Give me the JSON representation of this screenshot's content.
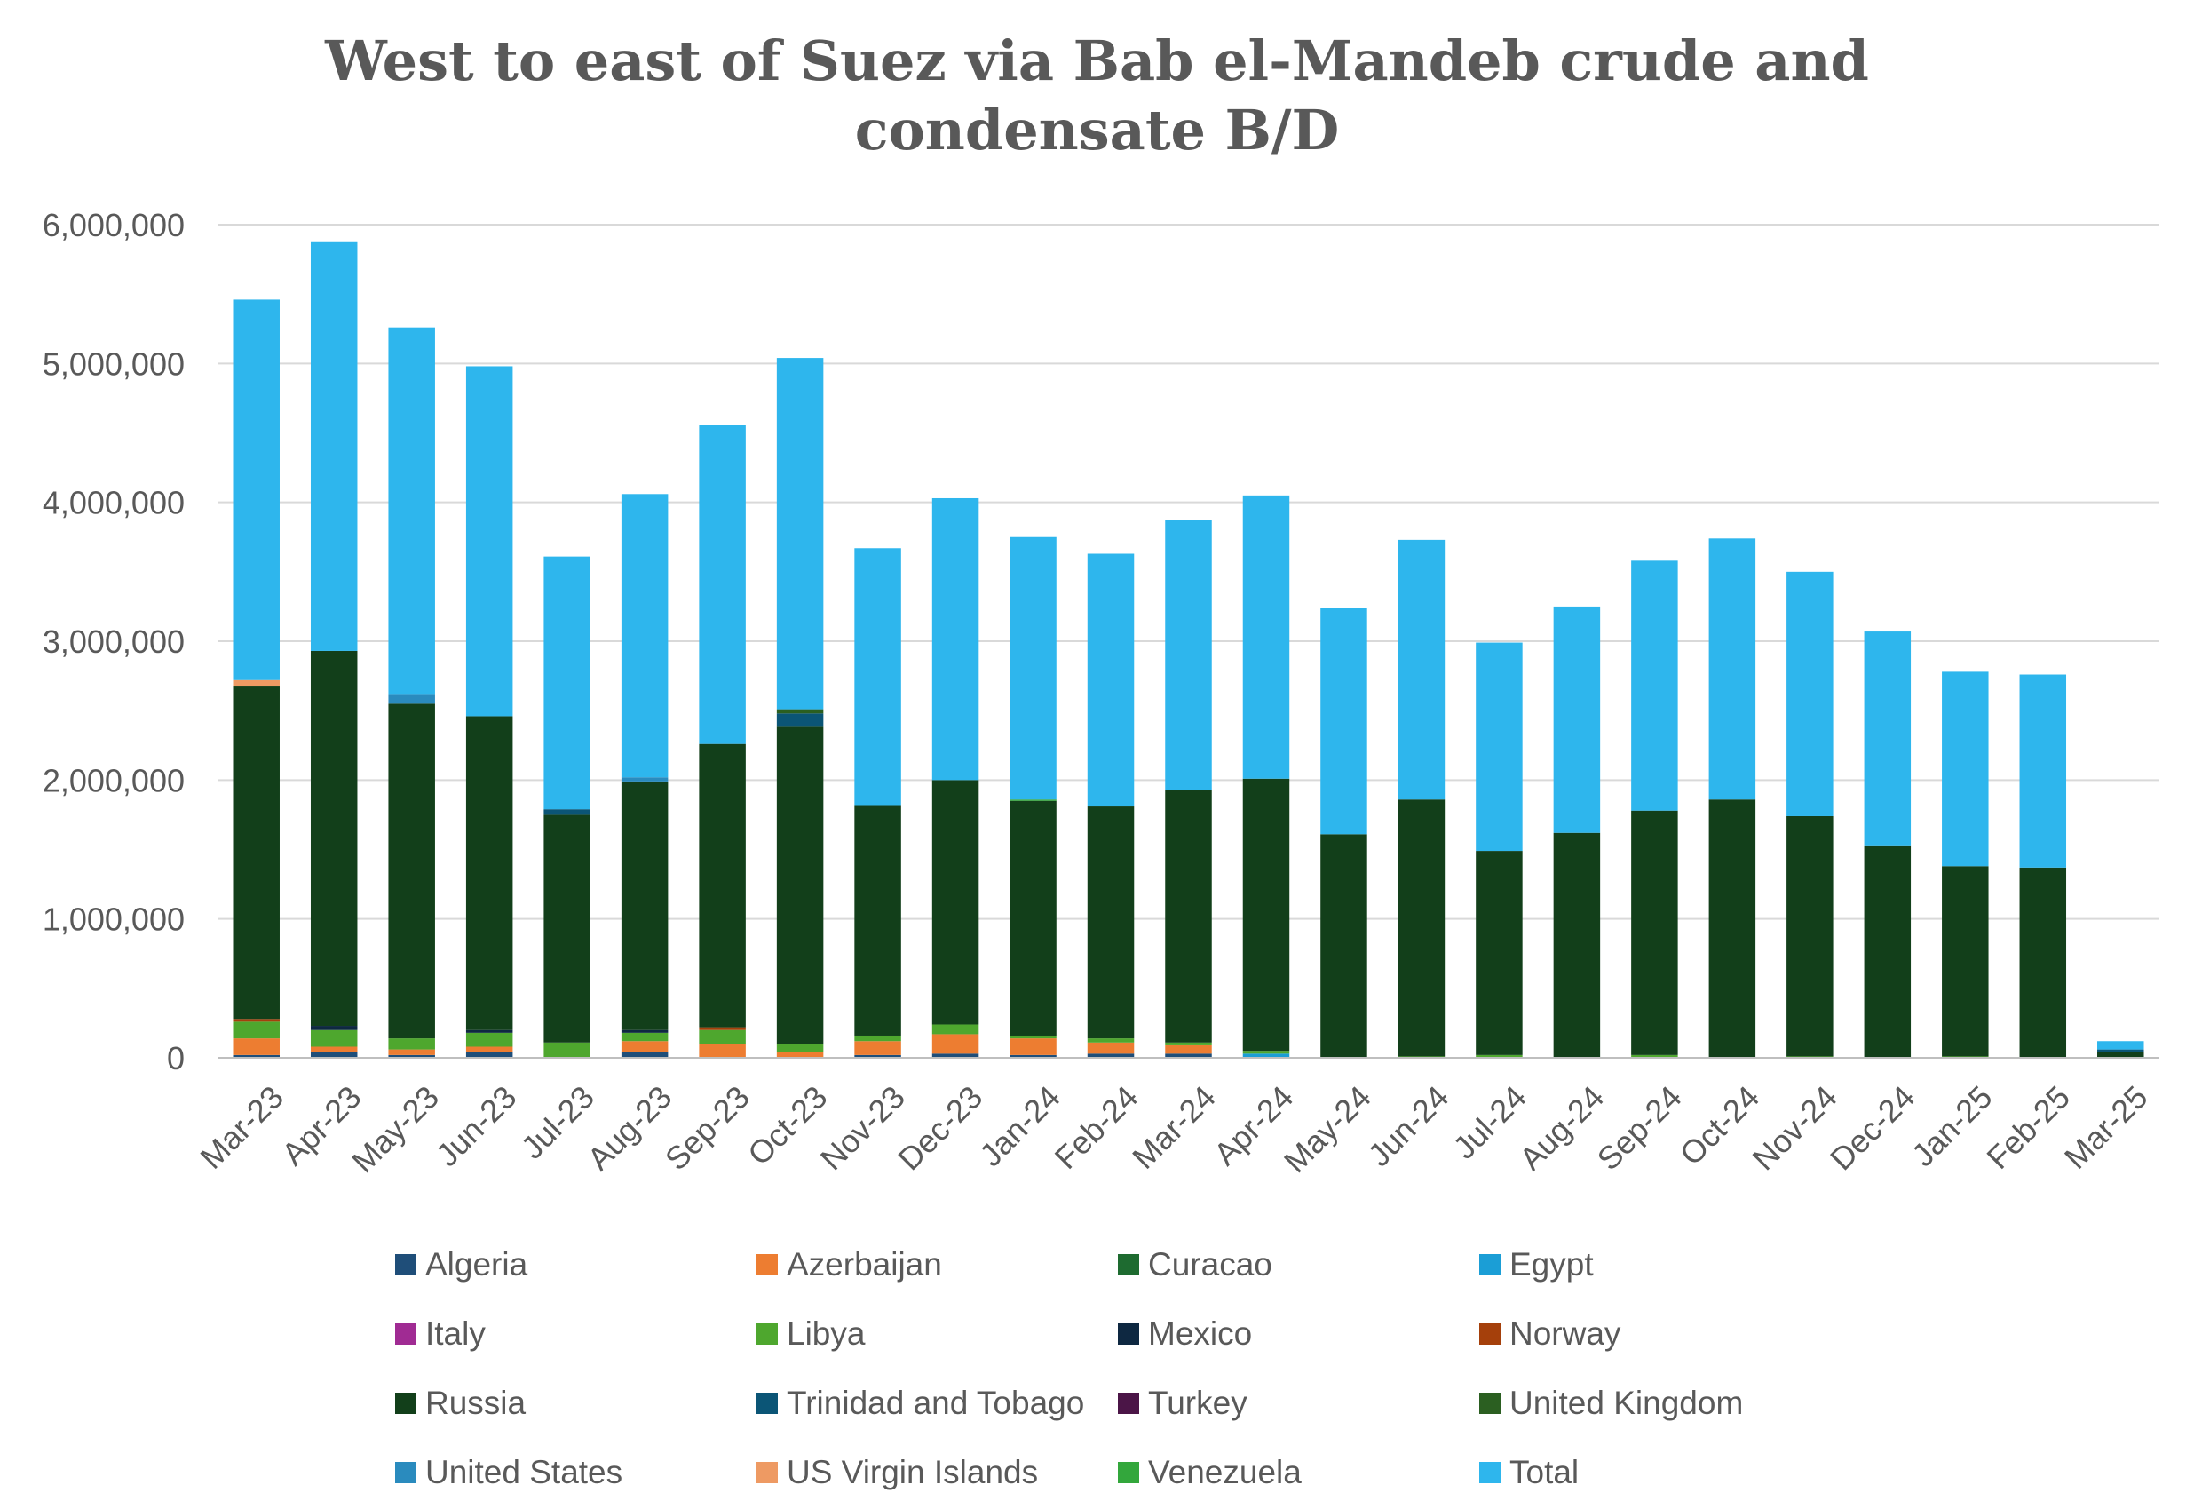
{
  "chart_data": {
    "type": "bar",
    "stacked": true,
    "title_lines": [
      "West to east of Suez via Bab el-Mandeb crude and",
      "condensate B/D"
    ],
    "xlabel": "",
    "ylabel": "",
    "ylim": [
      0,
      6000000
    ],
    "yticks": [
      0,
      1000000,
      2000000,
      3000000,
      4000000,
      5000000,
      6000000
    ],
    "ytick_labels": [
      "0",
      "1,000,000",
      "2,000,000",
      "3,000,000",
      "4,000,000",
      "5,000,000",
      "6,000,000"
    ],
    "grid": true,
    "legend_position": "bottom",
    "categories": [
      "Mar-23",
      "Apr-23",
      "May-23",
      "Jun-23",
      "Jul-23",
      "Aug-23",
      "Sep-23",
      "Oct-23",
      "Nov-23",
      "Dec-23",
      "Jan-24",
      "Feb-24",
      "Mar-24",
      "Apr-24",
      "May-24",
      "Jun-24",
      "Jul-24",
      "Aug-24",
      "Sep-24",
      "Oct-24",
      "Nov-24",
      "Dec-24",
      "Jan-25",
      "Feb-25",
      "Mar-25"
    ],
    "series": [
      {
        "name": "Algeria",
        "color": "#1F4E79",
        "values": [
          20000,
          40000,
          20000,
          40000,
          0,
          40000,
          0,
          0,
          20000,
          30000,
          20000,
          30000,
          30000,
          0,
          0,
          0,
          0,
          0,
          0,
          0,
          0,
          0,
          0,
          0,
          0
        ]
      },
      {
        "name": "Azerbaijan",
        "color": "#ED7D31",
        "values": [
          120000,
          40000,
          40000,
          40000,
          0,
          80000,
          100000,
          40000,
          100000,
          140000,
          120000,
          80000,
          60000,
          0,
          0,
          0,
          0,
          0,
          0,
          0,
          0,
          0,
          0,
          0,
          0
        ]
      },
      {
        "name": "Curacao",
        "color": "#1E6B30",
        "values": [
          0,
          0,
          0,
          0,
          0,
          0,
          0,
          0,
          0,
          0,
          0,
          0,
          0,
          0,
          0,
          0,
          0,
          0,
          0,
          0,
          0,
          0,
          0,
          0,
          0
        ]
      },
      {
        "name": "Egypt",
        "color": "#1B9ED6",
        "values": [
          0,
          0,
          0,
          0,
          0,
          0,
          0,
          0,
          0,
          0,
          0,
          0,
          0,
          30000,
          0,
          0,
          0,
          0,
          0,
          0,
          0,
          0,
          0,
          0,
          0
        ]
      },
      {
        "name": "Italy",
        "color": "#A02B93",
        "values": [
          0,
          0,
          0,
          0,
          0,
          0,
          0,
          0,
          0,
          0,
          0,
          0,
          0,
          0,
          0,
          0,
          0,
          0,
          0,
          0,
          0,
          0,
          0,
          0,
          0
        ]
      },
      {
        "name": "Libya",
        "color": "#4EA72E",
        "values": [
          120000,
          120000,
          80000,
          100000,
          110000,
          60000,
          100000,
          60000,
          40000,
          70000,
          20000,
          30000,
          20000,
          20000,
          0,
          10000,
          20000,
          0,
          20000,
          0,
          10000,
          0,
          10000,
          0,
          0
        ]
      },
      {
        "name": "Mexico",
        "color": "#0E2841",
        "values": [
          0,
          30000,
          0,
          20000,
          0,
          20000,
          0,
          0,
          0,
          0,
          0,
          0,
          0,
          0,
          0,
          0,
          0,
          0,
          0,
          0,
          0,
          0,
          0,
          0,
          0
        ]
      },
      {
        "name": "Norway",
        "color": "#A5400B",
        "values": [
          20000,
          0,
          0,
          0,
          0,
          0,
          20000,
          0,
          0,
          0,
          0,
          0,
          0,
          0,
          0,
          0,
          0,
          0,
          0,
          0,
          0,
          0,
          0,
          0,
          0
        ]
      },
      {
        "name": "Russia",
        "color": "#123F1A",
        "values": [
          2400000,
          2700000,
          2410000,
          2260000,
          1640000,
          1790000,
          2040000,
          2290000,
          1660000,
          1760000,
          1690000,
          1670000,
          1820000,
          1960000,
          1610000,
          1850000,
          1470000,
          1620000,
          1760000,
          1860000,
          1730000,
          1530000,
          1370000,
          1370000,
          40000
        ]
      },
      {
        "name": "Trinidad and Tobago",
        "color": "#0B5576",
        "values": [
          0,
          0,
          0,
          0,
          40000,
          0,
          0,
          90000,
          0,
          0,
          0,
          0,
          0,
          0,
          0,
          0,
          0,
          0,
          0,
          0,
          0,
          0,
          0,
          0,
          20000
        ]
      },
      {
        "name": "Turkey",
        "color": "#4B1547",
        "values": [
          0,
          0,
          0,
          0,
          0,
          0,
          0,
          0,
          0,
          0,
          0,
          0,
          0,
          0,
          0,
          0,
          0,
          0,
          0,
          0,
          0,
          0,
          0,
          0,
          0
        ]
      },
      {
        "name": "United Kingdom",
        "color": "#2B5F21",
        "values": [
          0,
          0,
          0,
          0,
          0,
          0,
          0,
          30000,
          0,
          0,
          0,
          0,
          0,
          0,
          0,
          0,
          0,
          0,
          0,
          0,
          0,
          0,
          0,
          0,
          0
        ]
      },
      {
        "name": "United States",
        "color": "#2A8BBE",
        "values": [
          0,
          0,
          70000,
          0,
          0,
          30000,
          0,
          0,
          0,
          0,
          0,
          0,
          0,
          0,
          0,
          0,
          0,
          0,
          0,
          0,
          0,
          0,
          0,
          0,
          0
        ]
      },
      {
        "name": "US Virgin Islands",
        "color": "#EE9A63",
        "values": [
          40000,
          0,
          0,
          0,
          0,
          0,
          0,
          0,
          0,
          0,
          0,
          0,
          0,
          0,
          0,
          0,
          0,
          0,
          0,
          0,
          0,
          0,
          0,
          0,
          0
        ]
      },
      {
        "name": "Venezuela",
        "color": "#33A73C",
        "values": [
          0,
          0,
          0,
          0,
          0,
          0,
          0,
          0,
          0,
          0,
          10000,
          0,
          0,
          0,
          0,
          0,
          0,
          0,
          0,
          0,
          0,
          0,
          0,
          0,
          0
        ]
      },
      {
        "name": "Total",
        "color": "#2EB6ED",
        "values": [
          2740000,
          2950000,
          2640000,
          2520000,
          1820000,
          2040000,
          2300000,
          2530000,
          1850000,
          2030000,
          1890000,
          1820000,
          1940000,
          2040000,
          1630000,
          1870000,
          1500000,
          1630000,
          1800000,
          1880000,
          1760000,
          1540000,
          1400000,
          1390000,
          60000
        ]
      }
    ]
  }
}
